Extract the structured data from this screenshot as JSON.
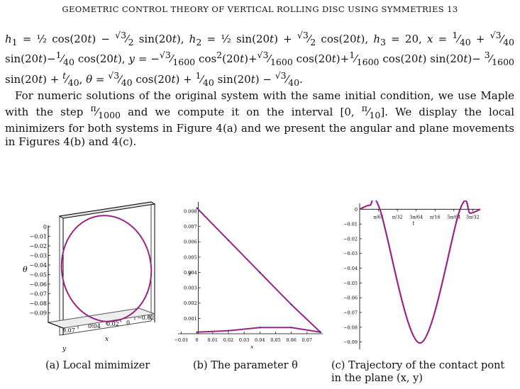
{
  "header": "GEOMETRIC CONTROL THEORY OF VERTICAL ROLLING DISC USING SYMMETRIES",
  "page_number": "13",
  "equations_text": "h1 = ½ cos(20t) − (√3/2) sin(20t), h2 = ½ sin(20t) + (√3/2) cos(20t), h3 = 20, x = 1/40 + (√3/40) sin(20t) − (1/40) cos(20t), y = −(√3/1600) cos²(20t) + (√3/1600) cos(20t) + (1/1600) cos(20t) sin(20t) − (3/1600) sin(20t) + t/40, θ = (√3/40) cos(20t) + (1/40) sin(20t) − √3/40.",
  "paragraph_text": "For numeric solutions of the original system with the same initial condition, we use Maple with the step π/1000 and we compute it on the interval [0, π/10]. We display the local minimizers for both systems in Figure 4(a) and we present the angular and plane movements in Figures 4(b) and 4(c).",
  "figures": {
    "a": {
      "caption": "(a) Local mimimizer",
      "theta_label": "θ",
      "x_label": "x",
      "y_label": "y",
      "theta_ticks": [
        "0",
        "−0.01",
        "−0.02",
        "−0.03",
        "−0.04",
        "−0.05",
        "−0.06",
        "−0.07",
        "−0.08",
        "−0.09"
      ],
      "y_ticks": [
        "0.07",
        "0.04",
        "0.02"
      ],
      "x_ticks": [
        "0",
        "−0.02"
      ]
    },
    "b": {
      "caption": "(b) The parameter θ",
      "x_label": "x",
      "y_label": "y",
      "y_ticks": [
        "0.008",
        "0.007",
        "0.006",
        "0.005",
        "0.004",
        "0.003",
        "0.002",
        "0.001"
      ],
      "x_ticks": [
        "−0.01",
        "0",
        "0.01",
        "0.02",
        "0.03",
        "0.04",
        "0.05",
        "0.06",
        "0.07"
      ]
    },
    "c": {
      "caption": "(c) Trajectory of the contact pont in the plane (x, y)",
      "x_label": "t",
      "y_ticks": [
        "0",
        "−0.01",
        "−0.02",
        "−0.03",
        "−0.04",
        "−0.05",
        "−0.06",
        "−0.07",
        "−0.08",
        "−0.09"
      ],
      "x_ticks": [
        "π/64",
        "π/32",
        "3π/64",
        "π/16",
        "5π/64",
        "3π/32"
      ]
    }
  },
  "chart_data": [
    {
      "type": "line",
      "title": "",
      "xlabel": "x",
      "ylabel": "y",
      "xlim": [
        -0.012,
        0.08
      ],
      "ylim": [
        0,
        0.0086
      ],
      "series": [
        {
          "x": [
            0,
            0.02,
            0.04,
            0.06,
            0.0785
          ],
          "y": [
            0.0082,
            0.0061,
            0.004,
            0.0019,
            0.0001
          ]
        },
        {
          "x": [
            0,
            0.02,
            0.04,
            0.06,
            0.0785
          ],
          "y": [
            0.0001,
            0.0002,
            0.0004,
            0.0004,
            0.0001
          ]
        }
      ]
    },
    {
      "type": "line",
      "title": "",
      "xlabel": "t",
      "ylabel": "",
      "xlim": [
        0,
        0.3142
      ],
      "ylim": [
        -0.095,
        0.004
      ],
      "series": [
        {
          "x": [
            0,
            0.0262,
            0.0524,
            0.1571,
            0.2618,
            0.288,
            0.3142
          ],
          "y": [
            0,
            0.0027,
            0,
            -0.0907,
            0,
            -0.0027,
            0
          ]
        }
      ]
    }
  ]
}
